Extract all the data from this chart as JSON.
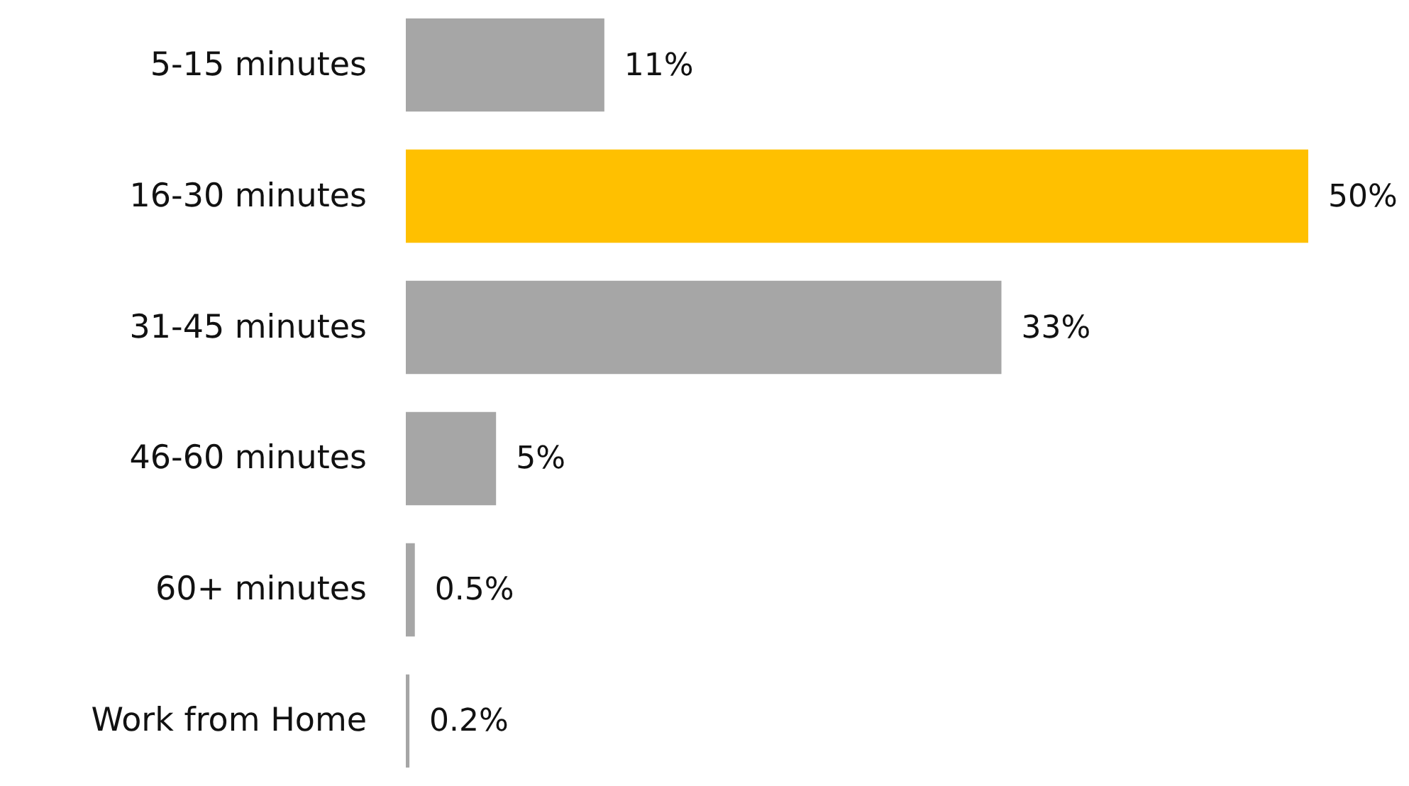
{
  "chart_data": {
    "type": "bar",
    "orientation": "horizontal",
    "categories": [
      "5-15 minutes",
      "16-30 minutes",
      "31-45 minutes",
      "46-60 minutes",
      "60+ minutes",
      "Work from Home"
    ],
    "values": [
      11,
      50,
      33,
      5,
      0.5,
      0.2
    ],
    "colors": [
      "#a6a6a6",
      "#ffc000",
      "#a6a6a6",
      "#a6a6a6",
      "#a6a6a6",
      "#a6a6a6"
    ],
    "value_labels": [
      "11%",
      "50%",
      "33%",
      "5%",
      "0.5%",
      "0.2%"
    ]
  }
}
